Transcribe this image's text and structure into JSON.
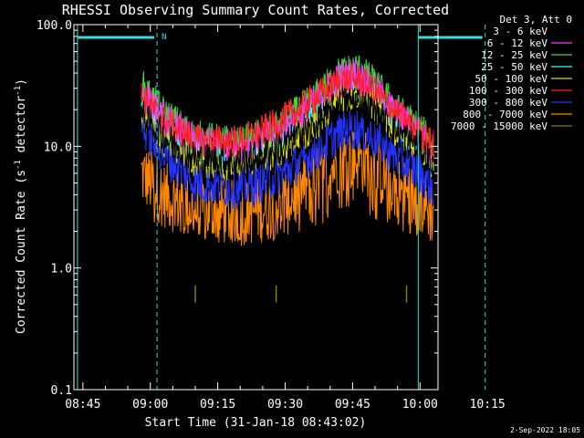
{
  "chart_data": {
    "type": "line",
    "title": "RHESSI Observing Summary Count Rates, Corrected",
    "xlabel": "Start Time (31-Jan-18 08:43:02)",
    "ylabel_main": "Corrected Count Rate (s",
    "ylabel_exp1": "-1",
    "ylabel_mid": " detector",
    "ylabel_exp2": "-1",
    "ylabel_end": ")",
    "y_scale": "log",
    "ylim": [
      0.1,
      100.0
    ],
    "xlim_min": [
      43,
      124
    ],
    "yticks": [
      {
        "value": 0.1,
        "label": "0.1"
      },
      {
        "value": 1.0,
        "label": "1.0"
      },
      {
        "value": 10.0,
        "label": "10.0"
      },
      {
        "value": 100.0,
        "label": "100.0"
      }
    ],
    "xticks": [
      {
        "value": 45,
        "label": "08:45"
      },
      {
        "value": 60,
        "label": "09:00"
      },
      {
        "value": 75,
        "label": "09:15"
      },
      {
        "value": 90,
        "label": "09:30"
      },
      {
        "value": 105,
        "label": "09:45"
      },
      {
        "value": 120,
        "label": "10:00"
      },
      {
        "value": 135,
        "label": "10:15"
      }
    ],
    "legend_header": "Det 3, Att 0",
    "legend_placement": "right",
    "night_marker_label": "N",
    "vlines_dashed_min": [
      61.5,
      134.5
    ],
    "vlines_solid_min": [
      43.8,
      119.6
    ],
    "night_bars_min": [
      [
        43.8,
        61.5
      ],
      [
        119.6,
        134.5
      ]
    ],
    "series": [
      {
        "name": "3 - 6 keV",
        "color": "#000000",
        "start": 58,
        "end": 123,
        "keys": [
          [
            58,
            18
          ],
          [
            63,
            12
          ],
          [
            70,
            8
          ],
          [
            80,
            7.5
          ],
          [
            88,
            9.5
          ],
          [
            96,
            14
          ],
          [
            102,
            22
          ],
          [
            106,
            24
          ],
          [
            110,
            19
          ],
          [
            115,
            13
          ],
          [
            120,
            10
          ],
          [
            123,
            7
          ]
        ]
      },
      {
        "name": "6 - 12 keV",
        "color": "#ff33ff",
        "start": 58,
        "end": 123,
        "keys": [
          [
            58,
            28
          ],
          [
            63,
            17
          ],
          [
            70,
            11
          ],
          [
            80,
            10
          ],
          [
            88,
            13
          ],
          [
            96,
            22
          ],
          [
            102,
            37
          ],
          [
            106,
            40
          ],
          [
            110,
            30
          ],
          [
            115,
            18
          ],
          [
            120,
            13
          ],
          [
            123,
            9
          ]
        ]
      },
      {
        "name": "12 - 25 keV",
        "color": "#33dd33",
        "start": 58,
        "end": 123,
        "keys": [
          [
            58,
            32
          ],
          [
            63,
            19
          ],
          [
            70,
            12
          ],
          [
            80,
            10.5
          ],
          [
            88,
            14
          ],
          [
            96,
            24
          ],
          [
            102,
            40
          ],
          [
            106,
            44
          ],
          [
            110,
            33
          ],
          [
            115,
            20
          ],
          [
            120,
            14
          ],
          [
            123,
            10
          ]
        ]
      },
      {
        "name": "25 - 50 keV",
        "color": "#33ffff",
        "start": 58,
        "end": 123,
        "keys": [
          [
            58,
            24
          ],
          [
            63,
            14
          ],
          [
            70,
            9.5
          ],
          [
            80,
            8.5
          ],
          [
            88,
            11
          ],
          [
            96,
            18
          ],
          [
            102,
            30
          ],
          [
            106,
            33
          ],
          [
            110,
            25
          ],
          [
            115,
            15
          ],
          [
            120,
            11
          ],
          [
            123,
            8
          ]
        ]
      },
      {
        "name": "50 - 100 keV",
        "color": "#dddd00",
        "start": 58,
        "end": 123,
        "keys": [
          [
            58,
            19
          ],
          [
            63,
            11
          ],
          [
            70,
            7.5
          ],
          [
            80,
            7
          ],
          [
            88,
            9
          ],
          [
            96,
            14
          ],
          [
            102,
            24
          ],
          [
            106,
            27
          ],
          [
            110,
            21
          ],
          [
            115,
            13
          ],
          [
            120,
            9.5
          ],
          [
            123,
            7
          ]
        ]
      },
      {
        "name": "100 - 300 keV",
        "color": "#ff2020",
        "start": 58,
        "end": 123,
        "keys": [
          [
            58,
            26
          ],
          [
            63,
            16
          ],
          [
            70,
            11
          ],
          [
            80,
            11
          ],
          [
            88,
            15
          ],
          [
            96,
            24
          ],
          [
            102,
            34
          ],
          [
            106,
            35
          ],
          [
            110,
            28
          ],
          [
            115,
            18
          ],
          [
            120,
            13
          ],
          [
            123,
            10
          ]
        ]
      },
      {
        "name": "300 - 800 keV",
        "color": "#2233ff",
        "start": 58,
        "end": 123,
        "keys": [
          [
            58,
            15
          ],
          [
            63,
            8.5
          ],
          [
            70,
            5
          ],
          [
            80,
            4.5
          ],
          [
            88,
            5.5
          ],
          [
            96,
            8.5
          ],
          [
            102,
            13
          ],
          [
            106,
            14
          ],
          [
            110,
            11.5
          ],
          [
            115,
            8
          ],
          [
            120,
            6
          ],
          [
            123,
            4.5
          ]
        ]
      },
      {
        "name": "800 - 7000 keV",
        "color": "#ff8800",
        "start": 58,
        "end": 123,
        "keys": [
          [
            58,
            6
          ],
          [
            63,
            4
          ],
          [
            70,
            3
          ],
          [
            80,
            2.8
          ],
          [
            88,
            3.2
          ],
          [
            96,
            5
          ],
          [
            102,
            7.5
          ],
          [
            106,
            8
          ],
          [
            110,
            6.5
          ],
          [
            115,
            4.5
          ],
          [
            120,
            3.5
          ],
          [
            123,
            2.8
          ]
        ]
      },
      {
        "name": "7000 - 15000 keV",
        "color": "#887711",
        "start": 58,
        "end": 123,
        "keys": [
          [
            70,
            0.6
          ],
          [
            88,
            0.6
          ],
          [
            117,
            0.6
          ]
        ]
      }
    ],
    "print_date": "2-Sep-2022 18:05"
  }
}
